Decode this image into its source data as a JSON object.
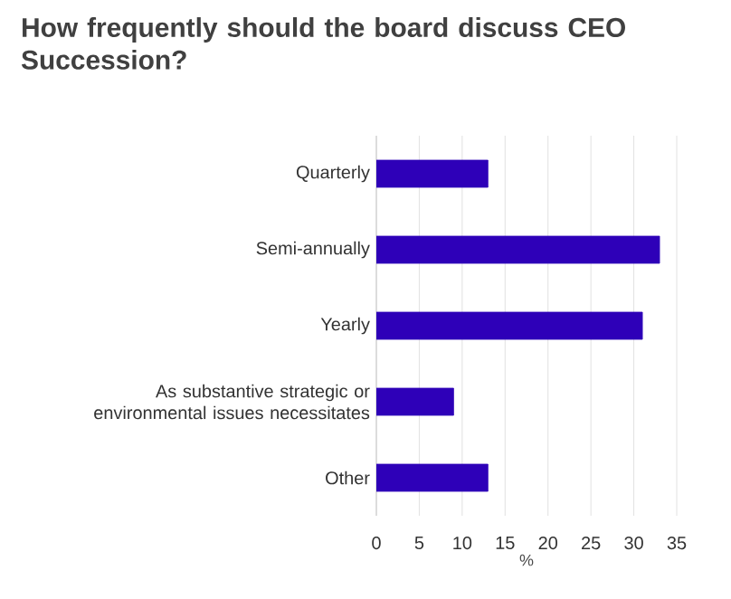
{
  "chart_data": {
    "type": "bar",
    "orientation": "horizontal",
    "title": "How frequently should the board discuss CEO Succession?",
    "categories": [
      "Quarterly",
      "Semi-annually",
      "Yearly",
      "As substantive strategic or environmental issues necessitates",
      "Other"
    ],
    "values": [
      13,
      33,
      31,
      9,
      13
    ],
    "color": "#2e00b8",
    "xlabel": "%",
    "xlim": [
      0,
      35
    ],
    "xticks": [
      0,
      5,
      10,
      15,
      20,
      25,
      30,
      35
    ],
    "grid": "x"
  }
}
